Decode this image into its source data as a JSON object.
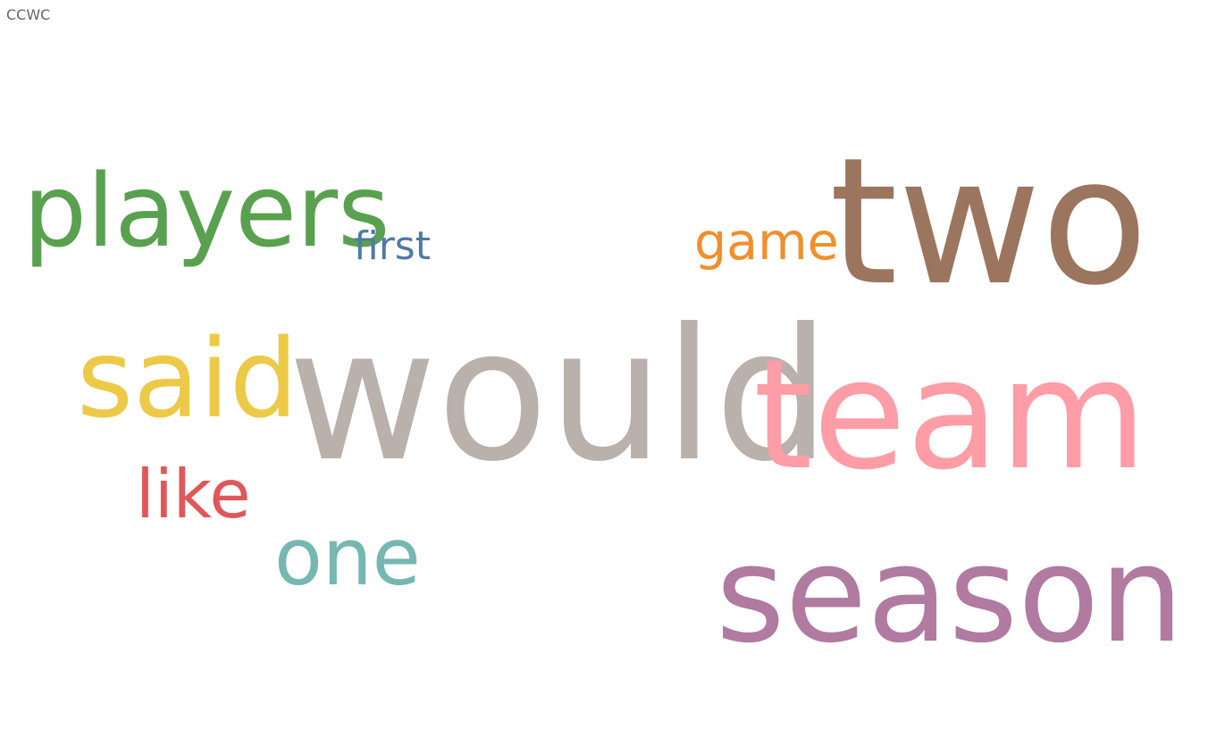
{
  "title": "CCWC",
  "chart_data": {
    "type": "wordcloud",
    "words": [
      {
        "text": "would",
        "color": "#bab0ac"
      },
      {
        "text": "two",
        "color": "#9c755f"
      },
      {
        "text": "team",
        "color": "#ff9da7"
      },
      {
        "text": "season",
        "color": "#b07aa1"
      },
      {
        "text": "players",
        "color": "#59a14f"
      },
      {
        "text": "said",
        "color": "#edc948"
      },
      {
        "text": "one",
        "color": "#76b7b2"
      },
      {
        "text": "like",
        "color": "#e15759"
      },
      {
        "text": "game",
        "color": "#f28e2b"
      },
      {
        "text": "first",
        "color": "#4e79a7"
      }
    ]
  }
}
